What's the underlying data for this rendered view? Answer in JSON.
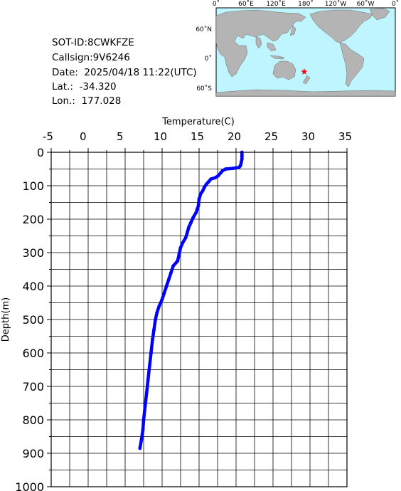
{
  "info": {
    "sot_id": "SOT-ID:8CWKFZE",
    "callsign": "Callsign:9V6246",
    "date": "Date:  2025/04/18 11:22(UTC)",
    "lat": "Lat.:  -34.320",
    "lon": "Lon.:  177.028"
  },
  "map": {
    "top_ticks": [
      "0˚",
      "60˚E",
      "120˚E",
      "180˚",
      "120˚W",
      "60˚W",
      "0˚"
    ],
    "left_ticks": [
      "60˚N",
      "0˚",
      "60˚S"
    ],
    "marker": {
      "lat": -34.32,
      "lon": 177.028,
      "color": "#ff0000",
      "icon": "star-icon"
    },
    "ocean_color": "#bff5ff",
    "land_color": "#b4b4b4"
  },
  "chart_data": {
    "type": "line",
    "title": "",
    "xlabel": "Temperature(C)",
    "ylabel": "Depth(m)",
    "xlim": [
      -5,
      35
    ],
    "ylim": [
      1000,
      0
    ],
    "x_ticks": [
      -5,
      0,
      5,
      10,
      15,
      20,
      25,
      30,
      35
    ],
    "y_ticks": [
      0,
      100,
      200,
      300,
      400,
      500,
      600,
      700,
      800,
      900,
      1000
    ],
    "grid": true,
    "series": [
      {
        "color": "#0000ff",
        "points": [
          [
            20.8,
            0
          ],
          [
            20.8,
            10
          ],
          [
            20.8,
            20
          ],
          [
            20.7,
            30
          ],
          [
            20.6,
            40
          ],
          [
            20.4,
            45
          ],
          [
            19.6,
            48
          ],
          [
            18.6,
            50
          ],
          [
            18.2,
            55
          ],
          [
            17.9,
            62
          ],
          [
            17.6,
            70
          ],
          [
            17.2,
            76
          ],
          [
            16.6,
            80
          ],
          [
            16.3,
            88
          ],
          [
            16.0,
            95
          ],
          [
            15.7,
            105
          ],
          [
            15.5,
            115
          ],
          [
            15.2,
            125
          ],
          [
            15.0,
            140
          ],
          [
            14.9,
            160
          ],
          [
            14.6,
            180
          ],
          [
            14.2,
            195
          ],
          [
            13.9,
            210
          ],
          [
            13.6,
            225
          ],
          [
            13.4,
            240
          ],
          [
            13.2,
            255
          ],
          [
            12.8,
            270
          ],
          [
            12.5,
            285
          ],
          [
            12.3,
            305
          ],
          [
            12.1,
            325
          ],
          [
            11.5,
            340
          ],
          [
            11.2,
            360
          ],
          [
            10.9,
            380
          ],
          [
            10.6,
            400
          ],
          [
            10.3,
            420
          ],
          [
            10.0,
            440
          ],
          [
            9.6,
            460
          ],
          [
            9.3,
            480
          ],
          [
            9.1,
            500
          ],
          [
            8.9,
            530
          ],
          [
            8.7,
            560
          ],
          [
            8.5,
            600
          ],
          [
            8.3,
            640
          ],
          [
            8.1,
            680
          ],
          [
            7.9,
            720
          ],
          [
            7.7,
            760
          ],
          [
            7.5,
            800
          ],
          [
            7.4,
            830
          ],
          [
            7.2,
            860
          ],
          [
            7.0,
            885
          ]
        ]
      }
    ]
  }
}
